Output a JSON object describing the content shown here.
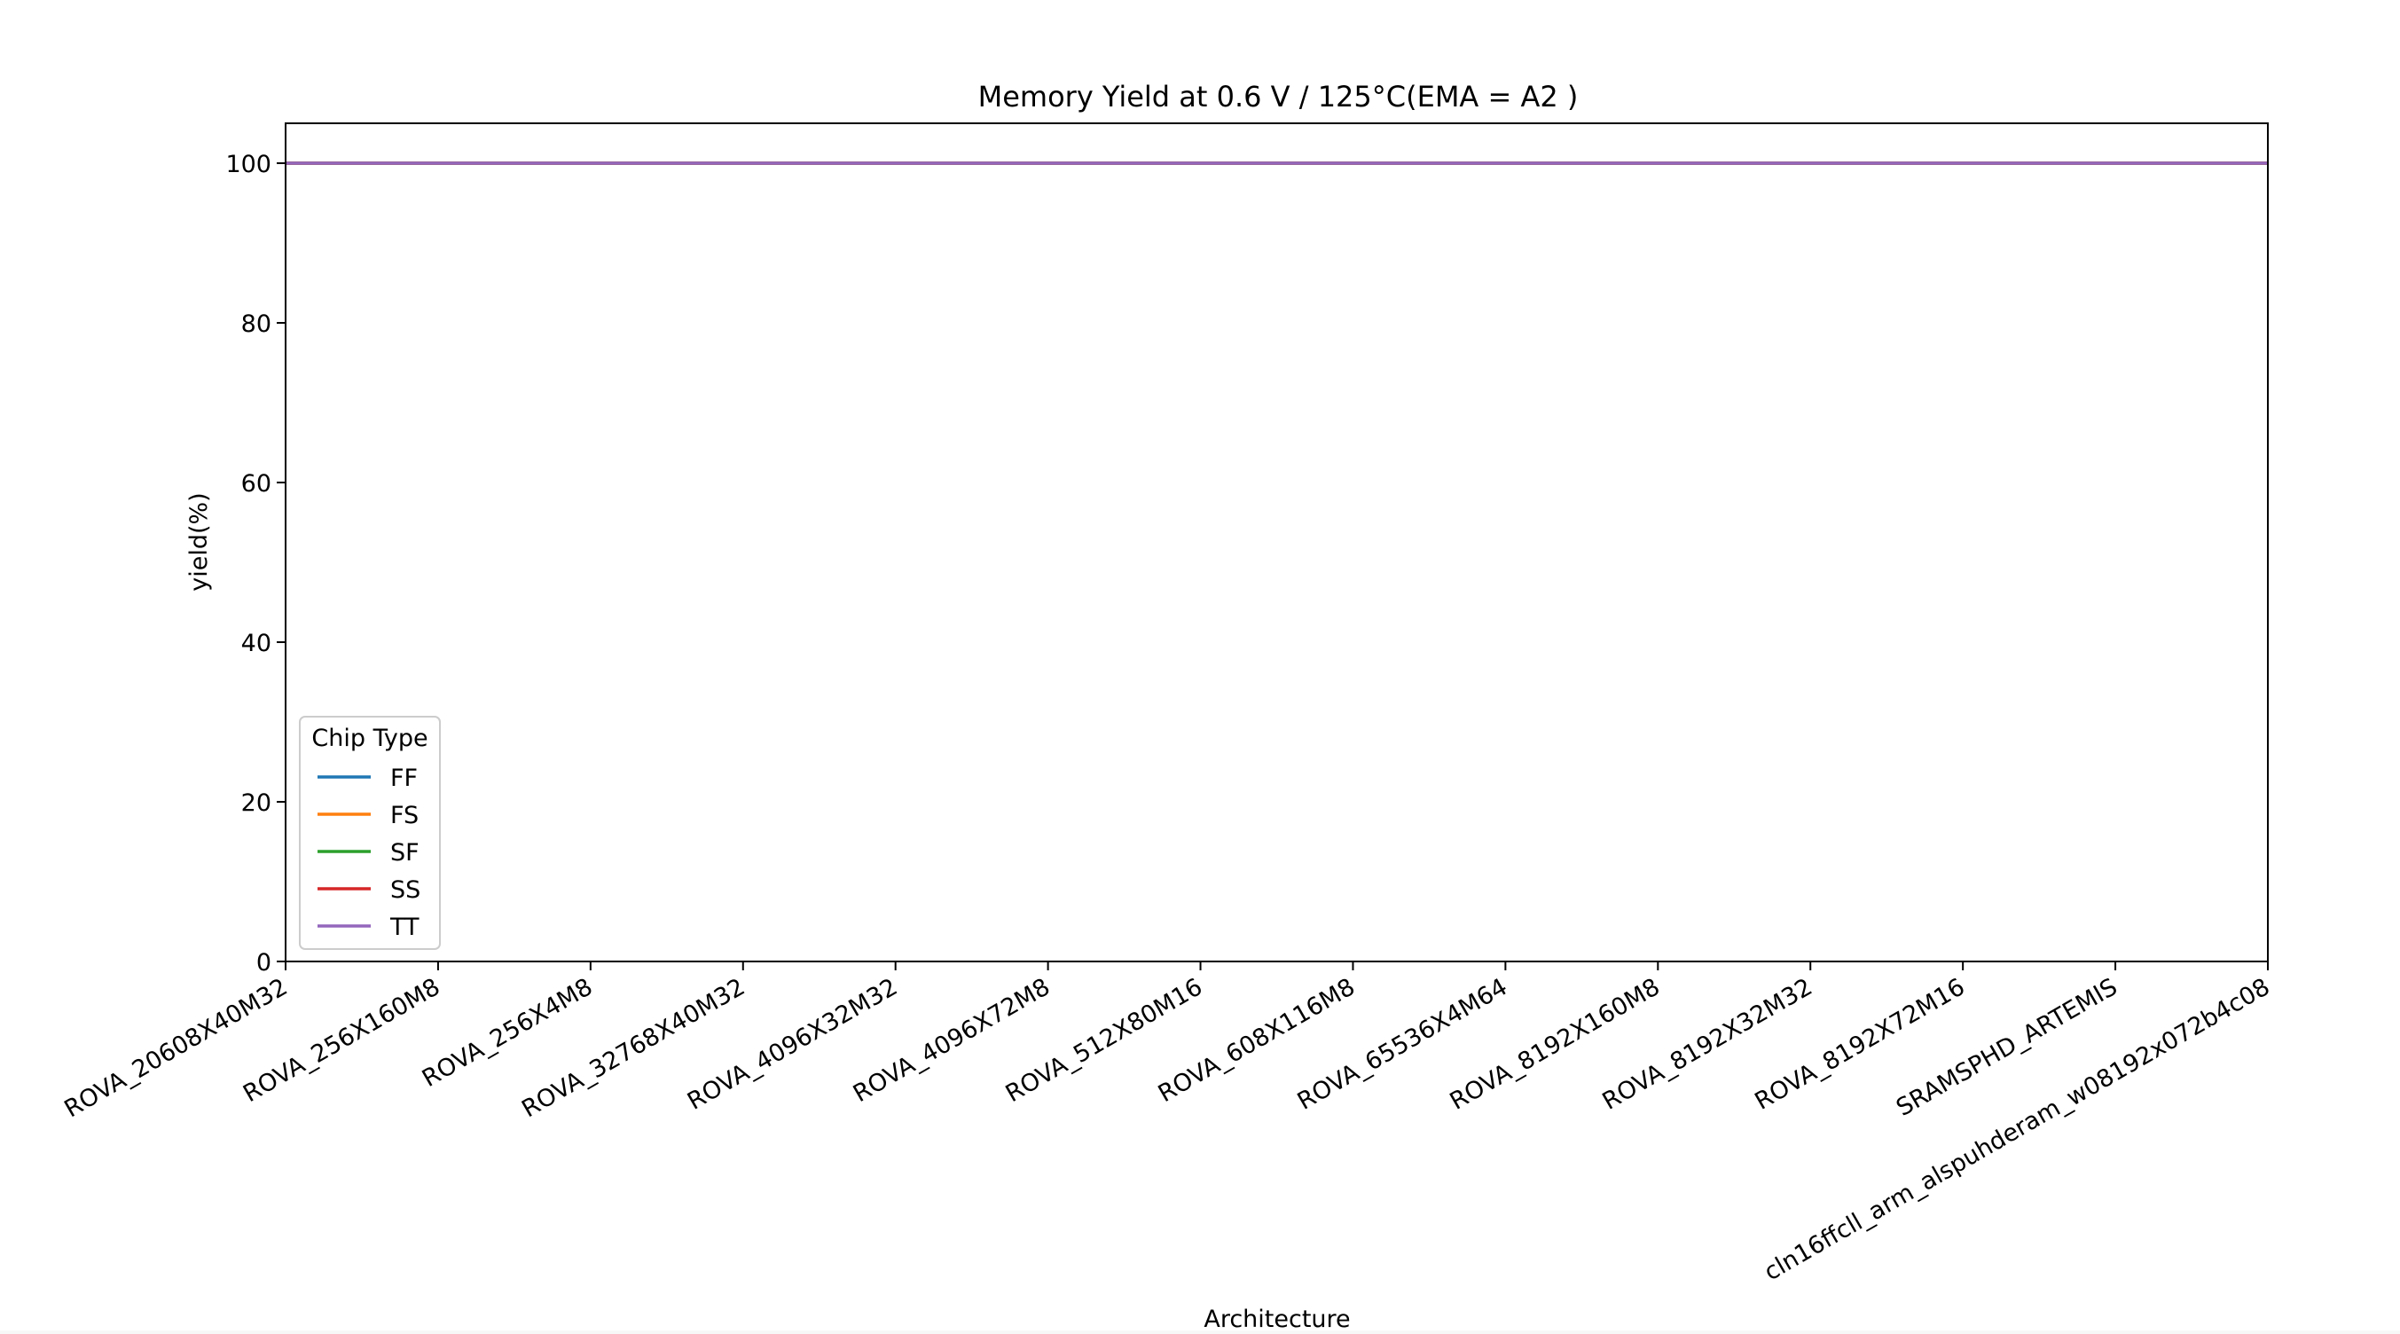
{
  "chart_data": {
    "type": "line",
    "title": "Memory Yield at 0.6 V / 125°C(EMA = A2 )",
    "xlabel": "Architecture",
    "ylabel": "yield(%)",
    "ylim": [
      0,
      105
    ],
    "yticks": [
      0,
      20,
      40,
      60,
      80,
      100
    ],
    "categories": [
      "ROVA_20608X40M32",
      "ROVA_256X160M8",
      "ROVA_256X4M8",
      "ROVA_32768X40M32",
      "ROVA_4096X32M32",
      "ROVA_4096X72M8",
      "ROVA_512X80M16",
      "ROVA_608X116M8",
      "ROVA_65536X4M64",
      "ROVA_8192X160M8",
      "ROVA_8192X32M32",
      "ROVA_8192X72M16",
      "SRAMSPHD_ARTEMIS",
      "cln16ffcll_arm_alspuhderam_w08192x072b4c08"
    ],
    "series": [
      {
        "name": "FF",
        "color": "#1f77b4",
        "values": [
          100,
          100,
          100,
          100,
          100,
          100,
          100,
          100,
          100,
          100,
          100,
          100,
          100,
          100
        ]
      },
      {
        "name": "FS",
        "color": "#ff7f0e",
        "values": [
          100,
          100,
          100,
          100,
          100,
          100,
          100,
          100,
          100,
          100,
          100,
          100,
          100,
          100
        ]
      },
      {
        "name": "SF",
        "color": "#2ca02c",
        "values": [
          100,
          100,
          100,
          100,
          100,
          100,
          100,
          100,
          100,
          100,
          100,
          100,
          100,
          100
        ]
      },
      {
        "name": "SS",
        "color": "#d62728",
        "values": [
          100,
          100,
          100,
          100,
          100,
          100,
          100,
          100,
          100,
          100,
          100,
          100,
          100,
          100
        ]
      },
      {
        "name": "TT",
        "color": "#9467bd",
        "values": [
          100,
          100,
          100,
          100,
          100,
          100,
          100,
          100,
          100,
          100,
          100,
          100,
          100,
          100
        ]
      }
    ],
    "legend": {
      "title": "Chip Type",
      "placement": "lower-left"
    },
    "grid": false
  }
}
